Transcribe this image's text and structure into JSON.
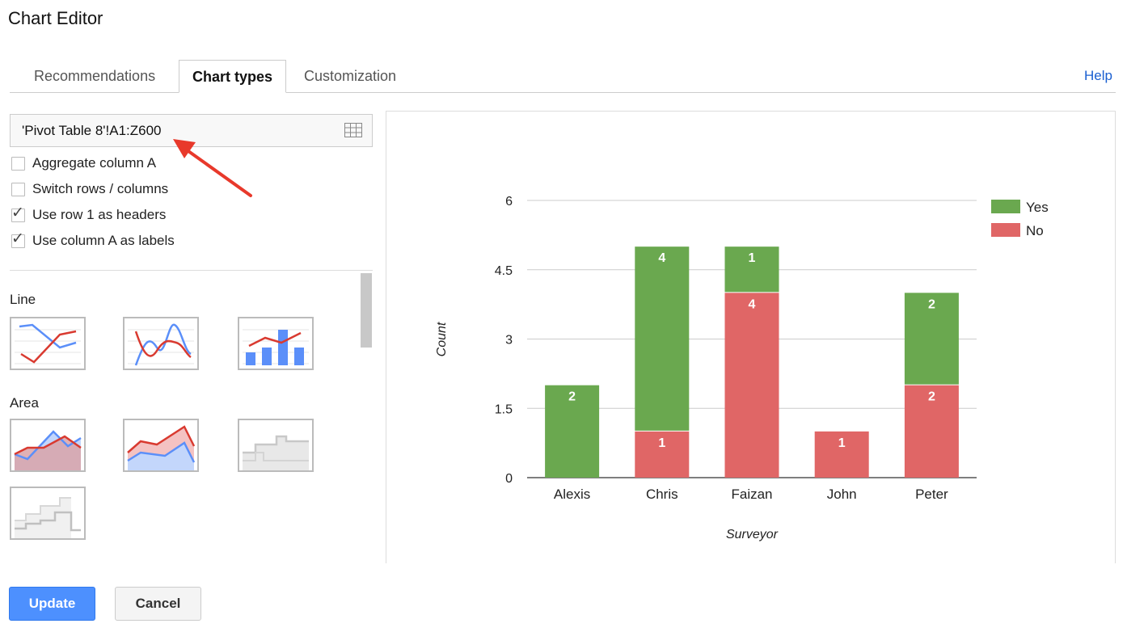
{
  "window": {
    "title": "Chart Editor"
  },
  "tabs": [
    {
      "label": "Recommendations",
      "active": false
    },
    {
      "label": "Chart types",
      "active": true
    },
    {
      "label": "Customization",
      "active": false
    }
  ],
  "help_label": "Help",
  "range": {
    "value": "'Pivot Table 8'!A1:Z600",
    "icon": "grid-icon"
  },
  "options": [
    {
      "label": "Aggregate column A",
      "checked": false
    },
    {
      "label": "Switch rows / columns",
      "checked": false
    },
    {
      "label": "Use row 1 as headers",
      "checked": true
    },
    {
      "label": "Use column A as labels",
      "checked": true
    }
  ],
  "sections": {
    "line": "Line",
    "area": "Area"
  },
  "buttons": {
    "update": "Update",
    "cancel": "Cancel"
  },
  "colors": {
    "yes": "#6aa84f",
    "no": "#e06666",
    "accent": "#4d90fe",
    "link": "#1a5fd1"
  },
  "chart_data": {
    "type": "bar",
    "stacked": true,
    "categories": [
      "Alexis",
      "Chris",
      "Faizan",
      "John",
      "Peter"
    ],
    "series": [
      {
        "name": "No",
        "values": [
          0,
          1,
          4,
          1,
          2
        ],
        "color": "#e06666"
      },
      {
        "name": "Yes",
        "values": [
          2,
          4,
          1,
          0,
          2
        ],
        "color": "#6aa84f"
      }
    ],
    "xlabel": "Surveyor",
    "ylabel": "Count",
    "ylim": [
      0,
      6
    ],
    "yticks": [
      "0",
      "1.5",
      "3",
      "4.5",
      "6"
    ],
    "legend": {
      "position": "right",
      "entries": [
        "Yes",
        "No"
      ]
    },
    "grid": true
  }
}
